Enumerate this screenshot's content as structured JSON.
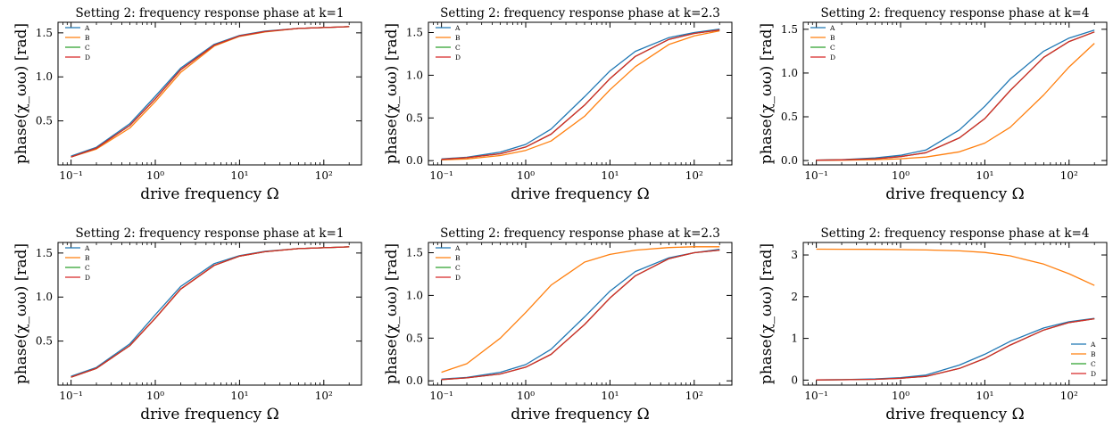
{
  "figure": {
    "colors": {
      "A": "#1f77b4",
      "B": "#ff7f0e",
      "C": "#2ca02c",
      "D": "#d62728"
    }
  },
  "chart_data": [
    {
      "type": "line",
      "title": "Setting 2: frequency response phase at k=1",
      "xlabel": "drive frequency Ω",
      "ylabel": "phase(χ_ωω) [rad]",
      "xscale": "log",
      "xlim": [
        0.07,
        280
      ],
      "ylim": [
        0.0,
        1.62
      ],
      "xticks": [
        0.1,
        1,
        10,
        100
      ],
      "xtick_labels": [
        "10⁻¹",
        "10⁰",
        "10¹",
        "10²"
      ],
      "yticks": [
        0.5,
        1.0,
        1.5
      ],
      "ytick_labels": [
        "0.5",
        "1.0",
        "1.5"
      ],
      "legend": {
        "location": "upper-left"
      },
      "x": [
        0.1,
        0.2,
        0.5,
        1,
        2,
        5,
        10,
        20,
        50,
        100,
        200
      ],
      "series": [
        {
          "name": "A",
          "values": [
            0.1,
            0.2,
            0.47,
            0.78,
            1.1,
            1.37,
            1.47,
            1.52,
            1.55,
            1.56,
            1.57
          ]
        },
        {
          "name": "B",
          "values": [
            0.09,
            0.18,
            0.42,
            0.72,
            1.05,
            1.35,
            1.46,
            1.51,
            1.55,
            1.56,
            1.57
          ]
        },
        {
          "name": "C",
          "values": [
            0.09,
            0.19,
            0.45,
            0.75,
            1.08,
            1.36,
            1.465,
            1.515,
            1.55,
            1.56,
            1.57
          ]
        },
        {
          "name": "D",
          "values": [
            0.09,
            0.19,
            0.45,
            0.75,
            1.08,
            1.36,
            1.465,
            1.515,
            1.55,
            1.56,
            1.57
          ]
        }
      ]
    },
    {
      "type": "line",
      "title": "Setting 2: frequency response phase at k=2.3",
      "xlabel": "drive frequency Ω",
      "ylabel": "phase(χ_ωω) [rad]",
      "xscale": "log",
      "xlim": [
        0.07,
        280
      ],
      "ylim": [
        -0.05,
        1.62
      ],
      "xticks": [
        0.1,
        1,
        10,
        100
      ],
      "xtick_labels": [
        "10⁻¹",
        "10⁰",
        "10¹",
        "10²"
      ],
      "yticks": [
        0.0,
        0.5,
        1.0,
        1.5
      ],
      "ytick_labels": [
        "0.0",
        "0.5",
        "1.0",
        "1.5"
      ],
      "legend": {
        "location": "upper-left"
      },
      "x": [
        0.1,
        0.2,
        0.5,
        1,
        2,
        5,
        10,
        20,
        50,
        100,
        200
      ],
      "series": [
        {
          "name": "A",
          "values": [
            0.02,
            0.04,
            0.1,
            0.19,
            0.37,
            0.75,
            1.05,
            1.28,
            1.44,
            1.5,
            1.54
          ]
        },
        {
          "name": "B",
          "values": [
            0.01,
            0.02,
            0.06,
            0.12,
            0.23,
            0.52,
            0.83,
            1.1,
            1.36,
            1.46,
            1.52
          ]
        },
        {
          "name": "C",
          "values": [
            0.015,
            0.035,
            0.08,
            0.16,
            0.31,
            0.65,
            0.96,
            1.22,
            1.42,
            1.49,
            1.53
          ]
        },
        {
          "name": "D",
          "values": [
            0.015,
            0.035,
            0.08,
            0.16,
            0.31,
            0.65,
            0.96,
            1.22,
            1.42,
            1.49,
            1.53
          ]
        }
      ]
    },
    {
      "type": "line",
      "title": "Setting 2: frequency response phase at k=4",
      "xlabel": "drive frequency Ω",
      "ylabel": "phase(χ_ωω) [rad]",
      "xscale": "log",
      "xlim": [
        0.07,
        280
      ],
      "ylim": [
        -0.05,
        1.58
      ],
      "xticks": [
        0.1,
        1,
        10,
        100
      ],
      "xtick_labels": [
        "10⁻¹",
        "10⁰",
        "10¹",
        "10²"
      ],
      "yticks": [
        0.0,
        0.5,
        1.0,
        1.5
      ],
      "ytick_labels": [
        "0.0",
        "0.5",
        "1.0",
        "1.5"
      ],
      "legend": {
        "location": "upper-left"
      },
      "x": [
        0.1,
        0.2,
        0.5,
        1,
        2,
        5,
        10,
        20,
        50,
        100,
        200
      ],
      "series": [
        {
          "name": "A",
          "values": [
            0.005,
            0.01,
            0.03,
            0.06,
            0.12,
            0.35,
            0.62,
            0.93,
            1.25,
            1.4,
            1.49
          ]
        },
        {
          "name": "B",
          "values": [
            0.002,
            0.004,
            0.01,
            0.02,
            0.04,
            0.1,
            0.2,
            0.38,
            0.75,
            1.07,
            1.34
          ]
        },
        {
          "name": "C",
          "values": [
            0.004,
            0.008,
            0.02,
            0.045,
            0.09,
            0.26,
            0.48,
            0.8,
            1.18,
            1.36,
            1.47
          ]
        },
        {
          "name": "D",
          "values": [
            0.004,
            0.008,
            0.02,
            0.045,
            0.09,
            0.26,
            0.48,
            0.8,
            1.18,
            1.36,
            1.47
          ]
        }
      ]
    },
    {
      "type": "line",
      "title": "Setting 2: frequency response phase at k=1",
      "xlabel": "drive frequency Ω",
      "ylabel": "phase(χ_ωω) [rad]",
      "xscale": "log",
      "xlim": [
        0.07,
        280
      ],
      "ylim": [
        0.0,
        1.62
      ],
      "xticks": [
        0.1,
        1,
        10,
        100
      ],
      "xtick_labels": [
        "10⁻¹",
        "10⁰",
        "10¹",
        "10²"
      ],
      "yticks": [
        0.5,
        1.0,
        1.5
      ],
      "ytick_labels": [
        "0.5",
        "1.0",
        "1.5"
      ],
      "legend": {
        "location": "upper-left"
      },
      "x": [
        0.1,
        0.2,
        0.5,
        1,
        2,
        5,
        10,
        20,
        50,
        100,
        200
      ],
      "series": [
        {
          "name": "A",
          "values": [
            0.1,
            0.2,
            0.47,
            0.8,
            1.12,
            1.38,
            1.47,
            1.52,
            1.55,
            1.56,
            1.57
          ]
        },
        {
          "name": "B",
          "values": [
            0.09,
            0.19,
            0.45,
            0.76,
            1.09,
            1.36,
            1.465,
            1.515,
            1.55,
            1.56,
            1.57
          ]
        },
        {
          "name": "C",
          "values": [
            0.09,
            0.19,
            0.45,
            0.76,
            1.09,
            1.36,
            1.465,
            1.515,
            1.55,
            1.56,
            1.57
          ]
        },
        {
          "name": "D",
          "values": [
            0.09,
            0.19,
            0.45,
            0.76,
            1.09,
            1.36,
            1.465,
            1.515,
            1.55,
            1.56,
            1.57
          ]
        }
      ]
    },
    {
      "type": "line",
      "title": "Setting 2: frequency response phase at k=2.3",
      "xlabel": "drive frequency Ω",
      "ylabel": "phase(χ_ωω) [rad]",
      "xscale": "log",
      "xlim": [
        0.07,
        280
      ],
      "ylim": [
        -0.05,
        1.62
      ],
      "xticks": [
        0.1,
        1,
        10,
        100
      ],
      "xtick_labels": [
        "10⁻¹",
        "10⁰",
        "10¹",
        "10²"
      ],
      "yticks": [
        0.0,
        0.5,
        1.0,
        1.5
      ],
      "ytick_labels": [
        "0.0",
        "0.5",
        "1.0",
        "1.5"
      ],
      "legend": {
        "location": "upper-left"
      },
      "x": [
        0.1,
        0.2,
        0.5,
        1,
        2,
        5,
        10,
        20,
        50,
        100,
        200
      ],
      "series": [
        {
          "name": "A",
          "values": [
            0.02,
            0.04,
            0.1,
            0.19,
            0.37,
            0.75,
            1.05,
            1.28,
            1.44,
            1.5,
            1.54
          ]
        },
        {
          "name": "B",
          "values": [
            0.1,
            0.2,
            0.5,
            0.8,
            1.12,
            1.39,
            1.48,
            1.53,
            1.56,
            1.57,
            1.57
          ]
        },
        {
          "name": "C",
          "values": [
            0.015,
            0.035,
            0.08,
            0.16,
            0.31,
            0.66,
            0.97,
            1.23,
            1.43,
            1.5,
            1.53
          ]
        },
        {
          "name": "D",
          "values": [
            0.015,
            0.035,
            0.08,
            0.16,
            0.31,
            0.66,
            0.97,
            1.23,
            1.43,
            1.5,
            1.53
          ]
        }
      ]
    },
    {
      "type": "line",
      "title": "Setting 2: frequency response phase at k=4",
      "xlabel": "drive frequency Ω",
      "ylabel": "phase(χ_ωω) [rad]",
      "xscale": "log",
      "xlim": [
        0.07,
        280
      ],
      "ylim": [
        -0.12,
        3.3
      ],
      "xticks": [
        0.1,
        1,
        10,
        100
      ],
      "xtick_labels": [
        "10⁻¹",
        "10⁰",
        "10¹",
        "10²"
      ],
      "yticks": [
        0,
        1,
        2,
        3
      ],
      "ytick_labels": [
        "0",
        "1",
        "2",
        "3"
      ],
      "legend": {
        "location": "lower-right"
      },
      "x": [
        0.1,
        0.2,
        0.5,
        1,
        2,
        5,
        10,
        20,
        50,
        100,
        200
      ],
      "series": [
        {
          "name": "A",
          "values": [
            0.005,
            0.01,
            0.03,
            0.06,
            0.12,
            0.36,
            0.62,
            0.93,
            1.25,
            1.4,
            1.48
          ]
        },
        {
          "name": "B",
          "values": [
            3.14,
            3.138,
            3.135,
            3.13,
            3.12,
            3.1,
            3.06,
            2.98,
            2.78,
            2.55,
            2.27
          ]
        },
        {
          "name": "C",
          "values": [
            0.004,
            0.008,
            0.02,
            0.045,
            0.09,
            0.28,
            0.52,
            0.84,
            1.2,
            1.38,
            1.47
          ]
        },
        {
          "name": "D",
          "values": [
            0.004,
            0.008,
            0.02,
            0.045,
            0.09,
            0.28,
            0.52,
            0.84,
            1.2,
            1.38,
            1.47
          ]
        }
      ]
    }
  ]
}
